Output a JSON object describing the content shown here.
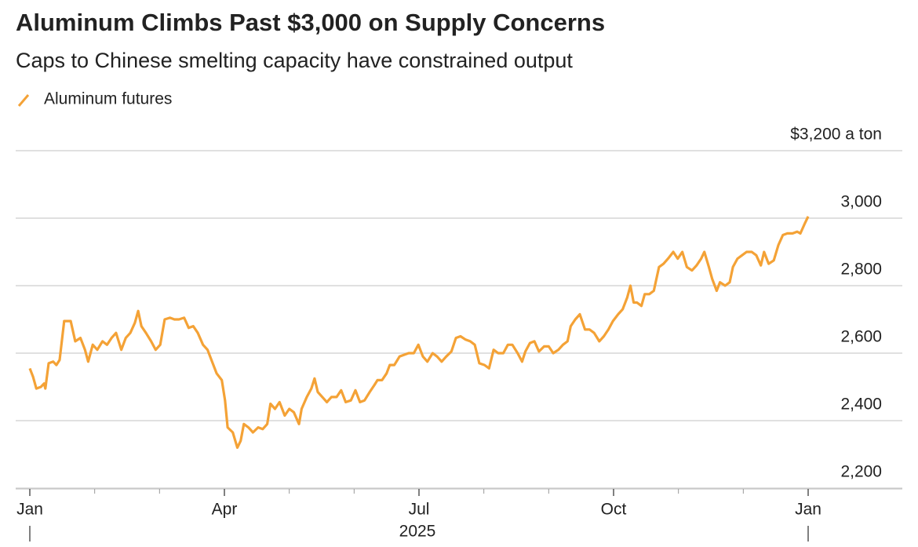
{
  "chart_data": {
    "type": "line",
    "title": "Aluminum Climbs Past $3,000 on Supply Concerns",
    "subtitle": "Caps to Chinese smelting capacity have constrained output",
    "x_sublabel": "2025",
    "xlim": [
      0,
      12
    ],
    "xticks": [
      {
        "value": 0,
        "label": "Jan"
      },
      {
        "value": 3,
        "label": "Apr"
      },
      {
        "value": 6,
        "label": "Jul"
      },
      {
        "value": 9,
        "label": "Oct"
      },
      {
        "value": 12,
        "label": "Jan"
      }
    ],
    "xticks_minor": [
      1,
      2,
      4,
      5,
      7,
      8,
      10,
      11
    ],
    "ylim": [
      2200,
      3200
    ],
    "yticks": [
      {
        "value": 2200,
        "label": "2,200"
      },
      {
        "value": 2400,
        "label": "2,400"
      },
      {
        "value": 2600,
        "label": "2,600"
      },
      {
        "value": 2800,
        "label": "2,800"
      },
      {
        "value": 3000,
        "label": "3,000"
      },
      {
        "value": 3200,
        "label": "$3,200 a ton"
      }
    ],
    "grid": true,
    "x": [
      0,
      0.05,
      0.1,
      0.17,
      0.22,
      0.24,
      0.29,
      0.36,
      0.41,
      0.46,
      0.53,
      0.63,
      0.7,
      0.78,
      0.85,
      0.9,
      0.97,
      1.04,
      1.12,
      1.19,
      1.26,
      1.33,
      1.41,
      1.48,
      1.55,
      1.62,
      1.67,
      1.72,
      1.79,
      1.87,
      1.94,
      2.01,
      2.08,
      2.16,
      2.23,
      2.3,
      2.38,
      2.45,
      2.52,
      2.59,
      2.67,
      2.74,
      2.81,
      2.88,
      2.96,
      3.01,
      3.05,
      3.13,
      3.2,
      3.25,
      3.3,
      3.37,
      3.44,
      3.52,
      3.59,
      3.66,
      3.71,
      3.78,
      3.85,
      3.93,
      4,
      4.07,
      4.15,
      4.19,
      4.27,
      4.34,
      4.39,
      4.44,
      4.51,
      4.58,
      4.65,
      4.73,
      4.8,
      4.87,
      4.95,
      5.02,
      5.09,
      5.16,
      5.24,
      5.31,
      5.36,
      5.43,
      5.5,
      5.55,
      5.62,
      5.7,
      5.77,
      5.84,
      5.92,
      5.99,
      6.06,
      6.13,
      6.21,
      6.28,
      6.35,
      6.42,
      6.5,
      6.57,
      6.64,
      6.72,
      6.79,
      6.86,
      6.93,
      7.01,
      7.08,
      7.15,
      7.22,
      7.3,
      7.37,
      7.44,
      7.52,
      7.59,
      7.64,
      7.71,
      7.78,
      7.85,
      7.93,
      8,
      8.07,
      8.15,
      8.22,
      8.29,
      8.34,
      8.41,
      8.48,
      8.56,
      8.63,
      8.7,
      8.78,
      8.85,
      8.92,
      8.99,
      9.07,
      9.14,
      9.21,
      9.26,
      9.31,
      9.36,
      9.43,
      9.48,
      9.55,
      9.62,
      9.7,
      9.77,
      9.84,
      9.92,
      9.99,
      10.06,
      10.13,
      10.21,
      10.28,
      10.35,
      10.4,
      10.47,
      10.52,
      10.59,
      10.64,
      10.72,
      10.79,
      10.84,
      10.91,
      10.98,
      11.05,
      11.13,
      11.2,
      11.27,
      11.32,
      11.39,
      11.47,
      11.54,
      11.61,
      11.68,
      11.76,
      11.83,
      11.88,
      11.95,
      12
    ],
    "series": [
      {
        "name": "Aluminum futures",
        "color": "#f4a236",
        "values": [
          2555,
          2530,
          2495,
          2500,
          2510,
          2495,
          2570,
          2575,
          2565,
          2580,
          2695,
          2695,
          2635,
          2645,
          2610,
          2575,
          2625,
          2610,
          2635,
          2625,
          2645,
          2660,
          2610,
          2645,
          2660,
          2690,
          2725,
          2680,
          2660,
          2635,
          2610,
          2625,
          2700,
          2705,
          2700,
          2700,
          2705,
          2675,
          2680,
          2660,
          2625,
          2610,
          2575,
          2540,
          2520,
          2460,
          2380,
          2365,
          2320,
          2340,
          2390,
          2380,
          2365,
          2380,
          2375,
          2390,
          2450,
          2435,
          2455,
          2415,
          2435,
          2425,
          2390,
          2435,
          2470,
          2495,
          2525,
          2485,
          2470,
          2455,
          2470,
          2470,
          2490,
          2455,
          2460,
          2490,
          2455,
          2460,
          2485,
          2505,
          2520,
          2520,
          2540,
          2565,
          2565,
          2590,
          2595,
          2600,
          2600,
          2625,
          2590,
          2575,
          2600,
          2590,
          2575,
          2590,
          2605,
          2645,
          2650,
          2640,
          2635,
          2625,
          2570,
          2565,
          2555,
          2610,
          2600,
          2600,
          2625,
          2625,
          2600,
          2575,
          2605,
          2630,
          2635,
          2605,
          2620,
          2620,
          2600,
          2610,
          2625,
          2635,
          2680,
          2700,
          2715,
          2670,
          2670,
          2660,
          2635,
          2650,
          2670,
          2695,
          2715,
          2730,
          2765,
          2800,
          2750,
          2750,
          2740,
          2775,
          2775,
          2785,
          2855,
          2865,
          2880,
          2900,
          2880,
          2900,
          2855,
          2845,
          2860,
          2880,
          2900,
          2855,
          2820,
          2785,
          2810,
          2800,
          2810,
          2855,
          2880,
          2890,
          2900,
          2900,
          2890,
          2860,
          2900,
          2865,
          2875,
          2920,
          2950,
          2955,
          2955,
          2960,
          2955,
          2985,
          3005
        ]
      }
    ]
  }
}
